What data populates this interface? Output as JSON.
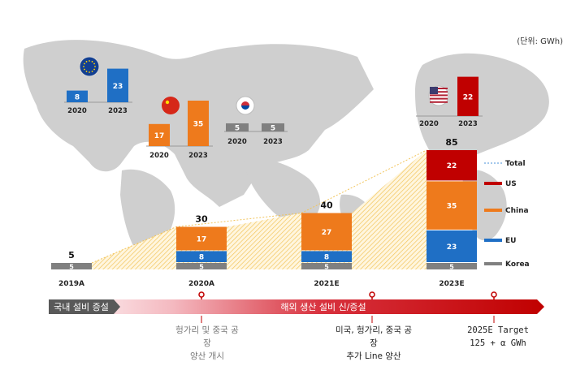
{
  "unit_label": "(단위: GWh)",
  "chart_data": {
    "type": "bar",
    "stacked": true,
    "categories": [
      "2019A",
      "2020A",
      "2021E",
      "2023E"
    ],
    "series": [
      {
        "name": "Korea",
        "color": "#808080",
        "values": [
          5,
          5,
          5,
          5
        ]
      },
      {
        "name": "EU",
        "color": "#1f6fc5",
        "values": [
          0,
          8,
          8,
          23
        ]
      },
      {
        "name": "China",
        "color": "#ee7a1c",
        "values": [
          0,
          17,
          27,
          35
        ]
      },
      {
        "name": "US",
        "color": "#c00000",
        "values": [
          0,
          0,
          0,
          22
        ]
      }
    ],
    "segment_labels": [
      [
        "5"
      ],
      [
        "5",
        "8",
        "17"
      ],
      [
        "5",
        "8",
        "27"
      ],
      [
        "5",
        "23",
        "35",
        "22"
      ]
    ],
    "totals": [
      "5",
      "30",
      "40",
      "85"
    ],
    "total_line_label": "Total",
    "legend": [
      "Total",
      "US",
      "China",
      "EU",
      "Korea"
    ],
    "legend_position": "right"
  },
  "regional_charts": [
    {
      "region": "EU",
      "icon": "eu-flag-icon",
      "color": "#1f6fc5",
      "years": [
        "2020",
        "2023"
      ],
      "values": [
        8,
        23
      ],
      "labels": [
        "8",
        "23"
      ]
    },
    {
      "region": "China",
      "icon": "china-flag-icon",
      "color": "#ee7a1c",
      "years": [
        "2020",
        "2023"
      ],
      "values": [
        17,
        35
      ],
      "labels": [
        "17",
        "35"
      ]
    },
    {
      "region": "Korea",
      "icon": "korea-flag-icon",
      "color": "#808080",
      "years": [
        "2020",
        "2023"
      ],
      "values": [
        5,
        5
      ],
      "labels": [
        "5",
        "5"
      ]
    },
    {
      "region": "US",
      "icon": "us-flag-icon",
      "color": "#c00000",
      "years": [
        "2020",
        "2023"
      ],
      "values": [
        0,
        22
      ],
      "labels": [
        "",
        "22"
      ]
    }
  ],
  "timeline": {
    "domestic_label": "국내 설비 증설",
    "overseas_label": "해외 생산 설비 신/증설",
    "milestones": [
      {
        "lines": [
          "헝가리 및 중국 공",
          "장",
          "양산 개시"
        ]
      },
      {
        "lines": [
          "미국, 헝가리, 중국 공",
          "장",
          "추가 Line 양산"
        ]
      },
      {
        "lines": [
          "2025E Target",
          "125 + α GWh"
        ]
      }
    ]
  }
}
